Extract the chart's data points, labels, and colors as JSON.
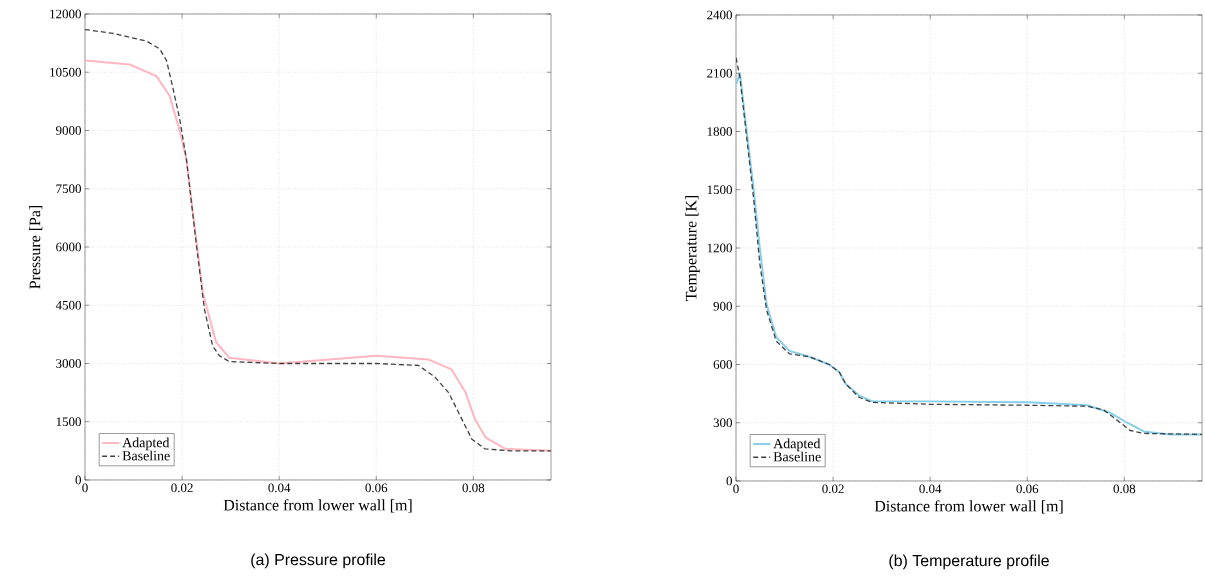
{
  "chart_data": [
    {
      "type": "line",
      "title": "(a)  Pressure profile",
      "xlabel": "Distance from lower wall [m]",
      "ylabel": "Pressure [Pa]",
      "xlim": [
        0,
        0.096
      ],
      "ylim": [
        0,
        12000
      ],
      "xticks": [
        0,
        0.02,
        0.04,
        0.06,
        0.08
      ],
      "yticks": [
        0,
        1500,
        3000,
        4500,
        6000,
        7500,
        9000,
        10500,
        12000
      ],
      "grid": true,
      "legend": "bottom left",
      "series": [
        {
          "name": "Adapted",
          "color": "#ffb6c1",
          "line_style": "solid",
          "x": [
            0,
            0.0092,
            0.0147,
            0.0174,
            0.0195,
            0.0209,
            0.0226,
            0.0243,
            0.027,
            0.0297,
            0.04,
            0.06,
            0.0708,
            0.0755,
            0.0784,
            0.0804,
            0.0825,
            0.0866,
            0.096
          ],
          "values": [
            10800,
            10700,
            10400,
            9900,
            9000,
            8250,
            6500,
            4800,
            3550,
            3150,
            3000,
            3200,
            3100,
            2850,
            2250,
            1550,
            1100,
            800,
            750
          ]
        },
        {
          "name": "Baseline",
          "color": "#404040",
          "line_style": "dashed",
          "x": [
            0,
            0.0058,
            0.0127,
            0.0154,
            0.0168,
            0.0181,
            0.0195,
            0.0209,
            0.0229,
            0.0246,
            0.0263,
            0.0277,
            0.0297,
            0.04,
            0.06,
            0.0687,
            0.0721,
            0.0749,
            0.0773,
            0.0797,
            0.0824,
            0.0878,
            0.096
          ],
          "values": [
            11600,
            11500,
            11300,
            11100,
            10800,
            10100,
            9300,
            8250,
            6100,
            4400,
            3450,
            3200,
            3050,
            3000,
            3000,
            2950,
            2650,
            2250,
            1650,
            1050,
            800,
            750,
            750
          ]
        }
      ]
    },
    {
      "type": "line",
      "title": "(b)  Temperature profile",
      "xlabel": "Distance from lower wall [m]",
      "ylabel": "Temperature [K]",
      "xlim": [
        0,
        0.096
      ],
      "ylim": [
        0,
        2400
      ],
      "xticks": [
        0,
        0.02,
        0.04,
        0.06,
        0.08
      ],
      "yticks": [
        0,
        300,
        600,
        900,
        1200,
        1500,
        1800,
        2100,
        2400
      ],
      "grid": true,
      "legend": "bottom left",
      "series": [
        {
          "name": "Adapted",
          "color": "#87ceeb",
          "line_style": "solid",
          "x": [
            0,
            0.0008,
            0.0022,
            0.0036,
            0.0049,
            0.0063,
            0.0083,
            0.011,
            0.0151,
            0.0192,
            0.0213,
            0.0226,
            0.0254,
            0.0281,
            0.04,
            0.0602,
            0.0724,
            0.0772,
            0.0806,
            0.084,
            0.0894,
            0.096
          ],
          "values": [
            2040,
            2100,
            1800,
            1510,
            1200,
            910,
            740,
            670,
            640,
            600,
            560,
            500,
            440,
            410,
            410,
            405,
            390,
            350,
            300,
            255,
            240,
            240
          ]
        },
        {
          "name": "Baseline",
          "color": "#404040",
          "line_style": "dashed",
          "x": [
            0,
            0.0008,
            0.0022,
            0.0036,
            0.0049,
            0.0063,
            0.0083,
            0.011,
            0.0151,
            0.0192,
            0.0213,
            0.0226,
            0.0254,
            0.0281,
            0.04,
            0.0602,
            0.0724,
            0.0758,
            0.0792,
            0.0812,
            0.084,
            0.096
          ],
          "values": [
            2180,
            2080,
            1770,
            1460,
            1120,
            880,
            720,
            655,
            640,
            600,
            560,
            500,
            430,
            405,
            395,
            390,
            385,
            365,
            300,
            260,
            245,
            240
          ]
        }
      ]
    }
  ]
}
